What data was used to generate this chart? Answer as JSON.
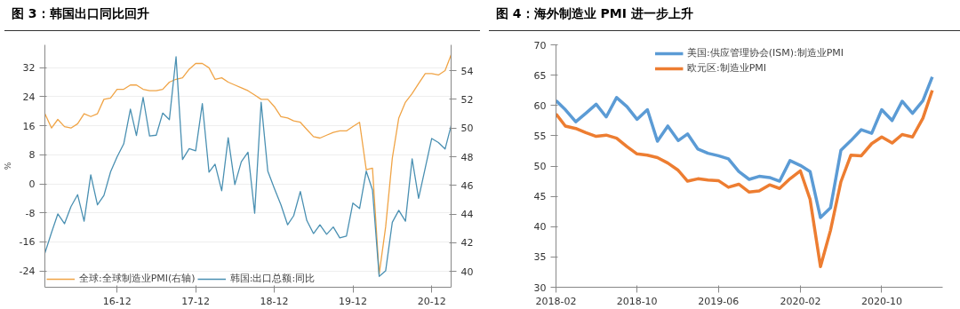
{
  "chart_data": [
    {
      "type": "line",
      "title": "图 3：韩国出口同比回升",
      "ylabel": "%",
      "x": [
        "2016-01",
        "2016-02",
        "2016-03",
        "2016-04",
        "2016-05",
        "2016-06",
        "2016-07",
        "2016-08",
        "2016-09",
        "2016-10",
        "2016-11",
        "2016-12",
        "2017-01",
        "2017-02",
        "2017-03",
        "2017-04",
        "2017-05",
        "2017-06",
        "2017-07",
        "2017-08",
        "2017-09",
        "2017-10",
        "2017-11",
        "2017-12",
        "2018-01",
        "2018-02",
        "2018-03",
        "2018-04",
        "2018-05",
        "2018-06",
        "2018-07",
        "2018-08",
        "2018-09",
        "2018-10",
        "2018-11",
        "2018-12",
        "2019-01",
        "2019-02",
        "2019-03",
        "2019-04",
        "2019-05",
        "2019-06",
        "2019-07",
        "2019-08",
        "2019-09",
        "2019-10",
        "2019-11",
        "2019-12",
        "2020-01",
        "2020-02",
        "2020-03",
        "2020-04",
        "2020-05",
        "2020-06",
        "2020-07",
        "2020-08",
        "2020-09",
        "2020-10",
        "2020-11",
        "2020-12",
        "2021-01",
        "2021-02",
        "2021-03"
      ],
      "series": [
        {
          "name": "全球:全球制造业PMI(右轴)",
          "color": "#f0a446",
          "axis": "y2",
          "values": [
            51.0,
            50.0,
            50.6,
            50.1,
            50.0,
            50.3,
            51.0,
            50.8,
            51.0,
            52.0,
            52.1,
            52.7,
            52.7,
            53.0,
            53.0,
            52.7,
            52.6,
            52.6,
            52.7,
            53.2,
            53.4,
            53.5,
            54.1,
            54.5,
            54.5,
            54.2,
            53.4,
            53.5,
            53.2,
            53.0,
            52.8,
            52.6,
            52.3,
            52.0,
            52.0,
            51.5,
            50.8,
            50.7,
            50.5,
            50.4,
            49.9,
            49.4,
            49.3,
            49.5,
            49.7,
            49.8,
            49.8,
            50.1,
            50.4,
            47.1,
            47.2,
            39.8,
            43.1,
            47.9,
            50.7,
            51.8,
            52.4,
            53.1,
            53.8,
            53.8,
            53.7,
            54.0,
            55.1
          ]
        },
        {
          "name": "韩国:出口总额:同比",
          "color": "#4a90b2",
          "values": [
            -19.1,
            -13.4,
            -8.3,
            -11.0,
            -6.3,
            -3.0,
            -10.3,
            2.5,
            -5.8,
            -3.2,
            3.3,
            7.4,
            11.0,
            20.6,
            13.3,
            23.8,
            13.2,
            13.4,
            19.5,
            17.7,
            35.0,
            6.7,
            9.7,
            9.1,
            22.1,
            3.2,
            5.4,
            -1.9,
            12.7,
            -0.2,
            6.1,
            8.7,
            -8.1,
            22.5,
            3.5,
            -1.2,
            -5.8,
            -11.3,
            -8.8,
            -2.1,
            -10.1,
            -13.7,
            -11.3,
            -13.9,
            -11.9,
            -14.9,
            -14.4,
            -5.3,
            -6.8,
            3.5,
            -1.7,
            -25.5,
            -24.0,
            -10.6,
            -7.3,
            -10.3,
            6.9,
            -4.0,
            4.4,
            12.5,
            11.4,
            9.6,
            16.0
          ]
        }
      ],
      "xlim": [
        "2016-01",
        "2021-03"
      ],
      "xticks": [
        {
          "value": "2016-12",
          "label": "16-12"
        },
        {
          "value": "2017-12",
          "label": "17-12"
        },
        {
          "value": "2018-12",
          "label": "18-12"
        },
        {
          "value": "2019-12",
          "label": "19-12"
        },
        {
          "value": "2020-12",
          "label": "20-12"
        }
      ],
      "ylim": [
        -28.5,
        38.3
      ],
      "yticks": [
        -24,
        -16,
        -8,
        0,
        8,
        16,
        24,
        32
      ],
      "y2lim": [
        38.9,
        55.8
      ],
      "y2ticks": [
        40,
        42,
        44,
        46,
        48,
        50,
        52,
        54
      ],
      "grid": "y",
      "legend": "bottom",
      "line_style": "solid"
    },
    {
      "type": "line",
      "title": "图 4：海外制造业 PMI 进一步上升",
      "x": [
        "2018-02",
        "2018-03",
        "2018-04",
        "2018-05",
        "2018-06",
        "2018-07",
        "2018-08",
        "2018-09",
        "2018-10",
        "2018-11",
        "2018-12",
        "2019-01",
        "2019-02",
        "2019-03",
        "2019-04",
        "2019-05",
        "2019-06",
        "2019-07",
        "2019-08",
        "2019-09",
        "2019-10",
        "2019-11",
        "2019-12",
        "2020-01",
        "2020-02",
        "2020-03",
        "2020-04",
        "2020-05",
        "2020-06",
        "2020-07",
        "2020-08",
        "2020-09",
        "2020-10",
        "2020-11",
        "2020-12",
        "2021-01",
        "2021-02",
        "2021-03"
      ],
      "series": [
        {
          "name": "美国:供应管理协会(ISM):制造业PMI",
          "color": "#5b9bd5",
          "values": [
            60.8,
            59.3,
            57.3,
            58.7,
            60.2,
            58.1,
            61.3,
            59.8,
            57.7,
            59.3,
            54.1,
            56.6,
            54.2,
            55.3,
            52.8,
            52.1,
            51.7,
            51.2,
            49.1,
            47.8,
            48.3,
            48.1,
            47.5,
            50.9,
            50.1,
            49.1,
            41.5,
            43.1,
            52.6,
            54.2,
            56.0,
            55.4,
            59.3,
            57.5,
            60.7,
            58.7,
            60.8,
            64.7
          ]
        },
        {
          "name": "欧元区:制造业PMI",
          "color": "#ed7d31",
          "values": [
            58.6,
            56.6,
            56.2,
            55.5,
            54.9,
            55.1,
            54.6,
            53.2,
            52.0,
            51.8,
            51.4,
            50.5,
            49.3,
            47.5,
            47.9,
            47.7,
            47.6,
            46.5,
            47.0,
            45.7,
            45.9,
            46.9,
            46.3,
            47.9,
            49.2,
            44.5,
            33.4,
            39.4,
            47.4,
            51.8,
            51.7,
            53.7,
            54.8,
            53.8,
            55.2,
            54.8,
            57.9,
            62.5
          ]
        }
      ],
      "xlim": [
        "2018-02",
        "2021-04"
      ],
      "xticks": [
        "2018-02",
        "2018-10",
        "2019-06",
        "2020-02",
        "2020-10"
      ],
      "ylim": [
        30,
        70
      ],
      "yticks": [
        30,
        35,
        40,
        45,
        50,
        55,
        60,
        65,
        70
      ],
      "grid": false,
      "legend": "top",
      "line_style": "solid"
    }
  ]
}
